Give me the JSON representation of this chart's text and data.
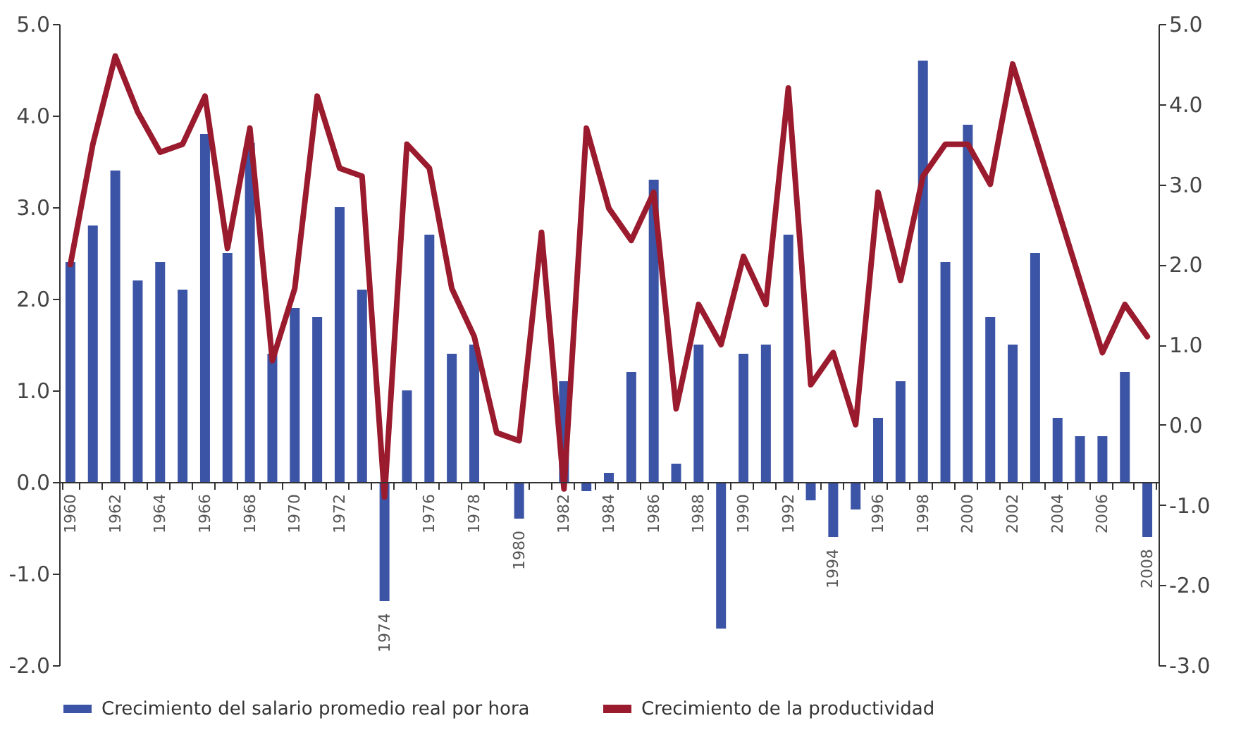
{
  "chart_data": {
    "type": "bar",
    "categories": [
      "1960",
      null,
      "1962",
      null,
      "1964",
      null,
      "1966",
      null,
      "1968",
      null,
      "1970",
      null,
      "1972",
      null,
      "1974",
      null,
      "1976",
      null,
      "1978",
      null,
      "1980",
      null,
      "1982",
      null,
      "1984",
      null,
      "1986",
      null,
      "1988",
      null,
      "1990",
      null,
      "1992",
      null,
      "1994",
      null,
      "1996",
      null,
      "1998",
      null,
      "2000",
      null,
      "2002",
      null,
      "2004",
      null,
      "2006",
      null,
      "2008"
    ],
    "series": [
      {
        "name": "Crecimiento del salario promedio real por hora",
        "color": "#3c54a5",
        "values": [
          2.4,
          2.8,
          3.4,
          2.2,
          2.4,
          2.1,
          3.8,
          2.5,
          3.7,
          1.4,
          1.9,
          1.8,
          3.0,
          2.1,
          -1.3,
          1.0,
          2.7,
          1.4,
          1.5,
          0,
          -0.4,
          0,
          1.1,
          -0.1,
          0.1,
          1.2,
          3.3,
          0.2,
          1.5,
          -1.6,
          1.4,
          1.5,
          2.7,
          -0.2,
          -0.6,
          -0.3,
          0.7,
          1.1,
          4.6,
          2.4,
          3.9,
          1.8,
          1.5,
          2.5,
          0.7,
          0.5,
          0.5,
          1.2,
          -0.6
        ]
      },
      {
        "name": "Crecimiento de la productividad",
        "type": "line",
        "axis": "y2",
        "color": "#9b1b2e",
        "values": [
          2.0,
          3.5,
          4.6,
          3.9,
          3.4,
          3.5,
          4.1,
          2.2,
          3.7,
          0.8,
          1.7,
          4.1,
          3.2,
          3.1,
          -0.9,
          3.5,
          3.2,
          1.7,
          1.1,
          -0.1,
          -0.2,
          2.4,
          -0.8,
          3.7,
          2.7,
          2.3,
          2.9,
          0.2,
          1.5,
          1.0,
          2.1,
          1.5,
          4.2,
          0.5,
          0.9,
          0.0,
          2.9,
          1.8,
          3.1,
          3.5,
          3.5,
          3.0,
          4.5,
          3.6,
          2.7,
          1.8,
          0.9,
          1.5,
          1.1
        ]
      }
    ],
    "ylim": [
      -2,
      5
    ],
    "yticks": [
      {
        "value": -2,
        "label": "-2.0"
      },
      {
        "value": -1,
        "label": "-1.0"
      },
      {
        "value": 0,
        "label": "0.0"
      },
      {
        "value": 1,
        "label": "1.0"
      },
      {
        "value": 2,
        "label": "2.0"
      },
      {
        "value": 3,
        "label": "3.0"
      },
      {
        "value": 4,
        "label": "4.0"
      },
      {
        "value": 5,
        "label": "5.0"
      }
    ],
    "y2lim": [
      -3,
      5
    ],
    "y2ticks": [
      {
        "value": -3,
        "label": "-3.0"
      },
      {
        "value": -2,
        "label": "-2.0"
      },
      {
        "value": -1,
        "label": "-1.0"
      },
      {
        "value": 0,
        "label": "0.0"
      },
      {
        "value": 1,
        "label": "1.0"
      },
      {
        "value": 2,
        "label": "2.0"
      },
      {
        "value": 3,
        "label": "3.0"
      },
      {
        "value": 4,
        "label": "4.0"
      },
      {
        "value": 5,
        "label": "5.0"
      }
    ],
    "grid": false,
    "legend": "bottom"
  }
}
